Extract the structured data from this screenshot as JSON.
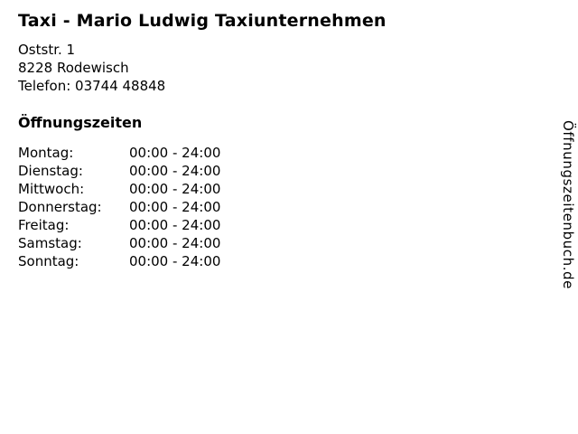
{
  "business": {
    "title": "Taxi - Mario Ludwig Taxiunternehmen",
    "address_line1": "Oststr. 1",
    "address_line2": "8228 Rodewisch",
    "phone_line": "Telefon: 03744 48848"
  },
  "hours": {
    "heading": "Öffnungszeiten",
    "rows": [
      {
        "day": "Montag:",
        "time": "00:00 - 24:00"
      },
      {
        "day": "Dienstag:",
        "time": "00:00 - 24:00"
      },
      {
        "day": "Mittwoch:",
        "time": "00:00 - 24:00"
      },
      {
        "day": "Donnerstag:",
        "time": "00:00 - 24:00"
      },
      {
        "day": "Freitag:",
        "time": "00:00 - 24:00"
      },
      {
        "day": "Samstag:",
        "time": "00:00 - 24:00"
      },
      {
        "day": "Sonntag:",
        "time": "00:00 - 24:00"
      }
    ]
  },
  "branding": {
    "vertical_label": "Öffnungszeitenbuch.de"
  },
  "colors": {
    "text": "#000000",
    "background": "#ffffff"
  }
}
